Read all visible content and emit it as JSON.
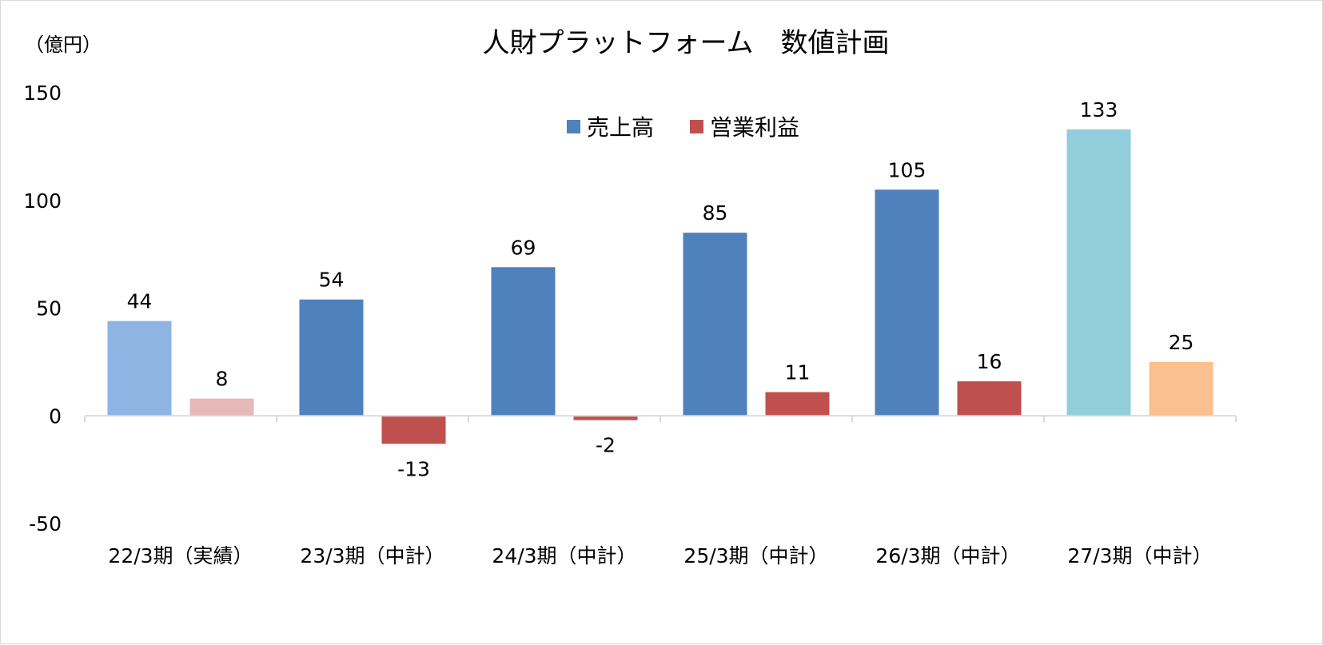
{
  "chart_data": {
    "type": "bar",
    "title": "人財プラットフォーム　数値計画",
    "unit_label": "（億円）",
    "categories": [
      "22/3期（実績）",
      "23/3期（中計）",
      "24/3期（中計）",
      "25/3期（中計）",
      "26/3期（中計）",
      "27/3期（中計）"
    ],
    "series": [
      {
        "name": "売上高",
        "values": [
          44,
          54,
          69,
          85,
          105,
          133
        ],
        "color": "#4f81bd",
        "point_colors": [
          "#8db4e2",
          "#4f81bd",
          "#4f81bd",
          "#4f81bd",
          "#4f81bd",
          "#92cddc"
        ]
      },
      {
        "name": "営業利益",
        "values": [
          8,
          -13,
          -2,
          11,
          16,
          25
        ],
        "color": "#c0504d",
        "point_colors": [
          "#e6b8b7",
          "#c0504d",
          "#c0504d",
          "#c0504d",
          "#c0504d",
          "#fac090"
        ]
      }
    ],
    "data_labels": [
      [
        "44",
        "54",
        "69",
        "85",
        "105",
        "133"
      ],
      [
        "8",
        "-13",
        "-2",
        "11",
        "16",
        "25"
      ]
    ],
    "ylim": [
      -50,
      150
    ],
    "yticks": [
      150,
      100,
      50,
      0,
      -50
    ],
    "grid": false,
    "legend_position": "top-center"
  }
}
